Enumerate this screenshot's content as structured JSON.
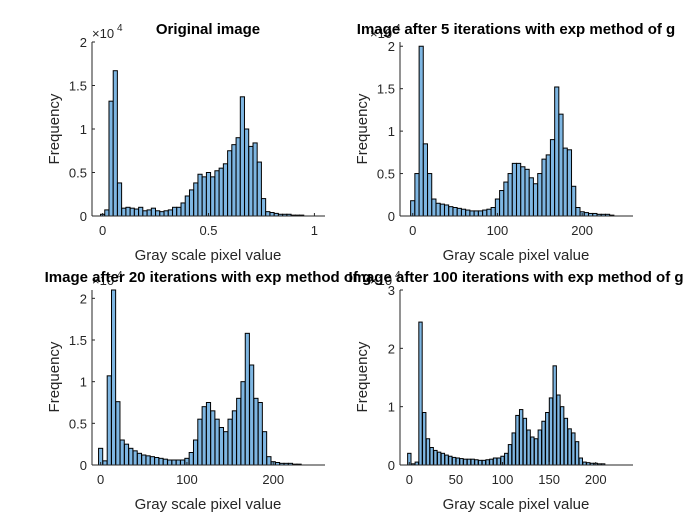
{
  "chart_data": [
    {
      "type": "bar",
      "title": "Original image",
      "xlabel": "Gray scale pixel value",
      "ylabel": "Frequency",
      "xlim": [
        -0.05,
        1.05
      ],
      "ylim": [
        0,
        2
      ],
      "bin_width": 0.0196,
      "y_exponent": "4",
      "xticks": [
        0,
        0.5,
        1
      ],
      "xtick_labels": [
        "0",
        "0.5",
        "1"
      ],
      "yticks": [
        0,
        0.5,
        1,
        1.5,
        2
      ],
      "ytick_labels": [
        "0",
        "0.5",
        "1",
        "1.5",
        "2"
      ],
      "x": [
        0,
        0.02,
        0.04,
        0.06,
        0.08,
        0.1,
        0.12,
        0.14,
        0.16,
        0.18,
        0.2,
        0.22,
        0.24,
        0.26,
        0.28,
        0.3,
        0.32,
        0.34,
        0.36,
        0.38,
        0.4,
        0.42,
        0.44,
        0.46,
        0.48,
        0.5,
        0.52,
        0.54,
        0.56,
        0.58,
        0.6,
        0.62,
        0.64,
        0.66,
        0.68,
        0.7,
        0.72,
        0.74,
        0.76,
        0.78,
        0.8,
        0.82,
        0.84,
        0.86,
        0.88,
        0.9,
        0.92,
        0.94
      ],
      "values": [
        0.02,
        0.07,
        1.32,
        1.67,
        0.38,
        0.09,
        0.1,
        0.09,
        0.08,
        0.1,
        0.06,
        0.07,
        0.09,
        0.06,
        0.05,
        0.06,
        0.07,
        0.1,
        0.1,
        0.15,
        0.23,
        0.3,
        0.38,
        0.48,
        0.45,
        0.5,
        0.45,
        0.52,
        0.55,
        0.6,
        0.75,
        0.82,
        0.9,
        1.37,
        1.0,
        0.8,
        0.84,
        0.62,
        0.2,
        0.05,
        0.04,
        0.03,
        0.02,
        0.02,
        0.02,
        0.01,
        0.01,
        0.01
      ]
    },
    {
      "type": "bar",
      "title": "Image after 5 iterations with exp method of g",
      "xlabel": "Gray scale pixel value",
      "ylabel": "Frequency",
      "xlim": [
        -15,
        260
      ],
      "ylim": [
        0,
        2.05
      ],
      "bin_width": 4.9,
      "y_exponent": "4",
      "xticks": [
        0,
        100,
        200
      ],
      "xtick_labels": [
        "0",
        "100",
        "200"
      ],
      "yticks": [
        0,
        0.5,
        1,
        1.5,
        2
      ],
      "ytick_labels": [
        "0",
        "0.5",
        "1",
        "1.5",
        "2"
      ],
      "x": [
        0,
        5,
        10,
        15,
        20,
        25,
        30,
        35,
        40,
        45,
        50,
        55,
        60,
        65,
        70,
        75,
        80,
        85,
        90,
        95,
        100,
        105,
        110,
        115,
        120,
        125,
        130,
        135,
        140,
        145,
        150,
        155,
        160,
        165,
        170,
        175,
        180,
        185,
        190,
        195,
        200,
        205,
        210,
        215,
        220,
        225,
        230,
        235
      ],
      "values": [
        0.18,
        0.5,
        2.0,
        0.85,
        0.5,
        0.2,
        0.15,
        0.14,
        0.13,
        0.11,
        0.1,
        0.09,
        0.08,
        0.07,
        0.06,
        0.06,
        0.06,
        0.07,
        0.08,
        0.1,
        0.2,
        0.3,
        0.4,
        0.5,
        0.62,
        0.62,
        0.58,
        0.55,
        0.45,
        0.38,
        0.5,
        0.67,
        0.72,
        0.9,
        1.52,
        1.2,
        0.8,
        0.78,
        0.35,
        0.1,
        0.05,
        0.04,
        0.03,
        0.03,
        0.02,
        0.02,
        0.02,
        0.01
      ]
    },
    {
      "type": "bar",
      "title": "Image after 20 iterations with exp method of g",
      "xlabel": "Gray scale pixel value",
      "ylabel": "Frequency",
      "xlim": [
        -10,
        260
      ],
      "ylim": [
        0,
        2.1
      ],
      "bin_width": 4.8,
      "y_exponent": "4",
      "xticks": [
        0,
        100,
        200
      ],
      "xtick_labels": [
        "0",
        "100",
        "200"
      ],
      "yticks": [
        0,
        0.5,
        1,
        1.5,
        2
      ],
      "ytick_labels": [
        "0",
        "0.5",
        "1",
        "1.5",
        "2"
      ],
      "x": [
        0,
        5,
        10,
        15,
        20,
        25,
        30,
        35,
        40,
        45,
        50,
        55,
        60,
        65,
        70,
        75,
        80,
        85,
        90,
        95,
        100,
        105,
        110,
        115,
        120,
        125,
        130,
        135,
        140,
        145,
        150,
        155,
        160,
        165,
        170,
        175,
        180,
        185,
        190,
        195,
        200,
        205,
        210,
        215,
        220,
        225,
        230
      ],
      "values": [
        0.2,
        0.05,
        1.07,
        2.1,
        0.76,
        0.3,
        0.25,
        0.2,
        0.17,
        0.14,
        0.12,
        0.11,
        0.1,
        0.09,
        0.08,
        0.07,
        0.06,
        0.06,
        0.06,
        0.06,
        0.08,
        0.15,
        0.3,
        0.55,
        0.7,
        0.75,
        0.65,
        0.55,
        0.45,
        0.4,
        0.55,
        0.65,
        0.8,
        1.0,
        1.58,
        1.2,
        0.8,
        0.75,
        0.4,
        0.1,
        0.04,
        0.03,
        0.02,
        0.02,
        0.02,
        0.01,
        0.01
      ]
    },
    {
      "type": "bar",
      "title": "Image after 100 iterations with exp method of g",
      "xlabel": "Gray scale pixel value",
      "ylabel": "Frequency",
      "xlim": [
        -10,
        240
      ],
      "ylim": [
        0,
        3
      ],
      "bin_width": 3.6,
      "y_exponent": "4",
      "xticks": [
        0,
        50,
        100,
        150,
        200
      ],
      "xtick_labels": [
        "0",
        "50",
        "100",
        "150",
        "200"
      ],
      "yticks": [
        0,
        1,
        2,
        3
      ],
      "ytick_labels": [
        "0",
        "1",
        "2",
        "3"
      ],
      "x": [
        0,
        4,
        8,
        12,
        16,
        20,
        24,
        28,
        32,
        36,
        40,
        44,
        48,
        52,
        56,
        60,
        64,
        68,
        72,
        76,
        80,
        84,
        88,
        92,
        96,
        100,
        104,
        108,
        112,
        116,
        120,
        124,
        128,
        132,
        136,
        140,
        144,
        148,
        152,
        156,
        160,
        164,
        168,
        172,
        176,
        180,
        184,
        188,
        192,
        196,
        200,
        204,
        208
      ],
      "values": [
        0.2,
        0.02,
        0.05,
        2.45,
        0.9,
        0.45,
        0.3,
        0.25,
        0.22,
        0.2,
        0.17,
        0.15,
        0.13,
        0.12,
        0.11,
        0.1,
        0.1,
        0.1,
        0.09,
        0.08,
        0.08,
        0.09,
        0.1,
        0.12,
        0.12,
        0.15,
        0.2,
        0.35,
        0.55,
        0.85,
        0.95,
        0.8,
        0.6,
        0.48,
        0.45,
        0.6,
        0.75,
        0.9,
        1.15,
        1.7,
        1.2,
        1.0,
        0.8,
        0.62,
        0.55,
        0.4,
        0.12,
        0.05,
        0.04,
        0.03,
        0.03,
        0.02,
        0.02
      ]
    }
  ]
}
